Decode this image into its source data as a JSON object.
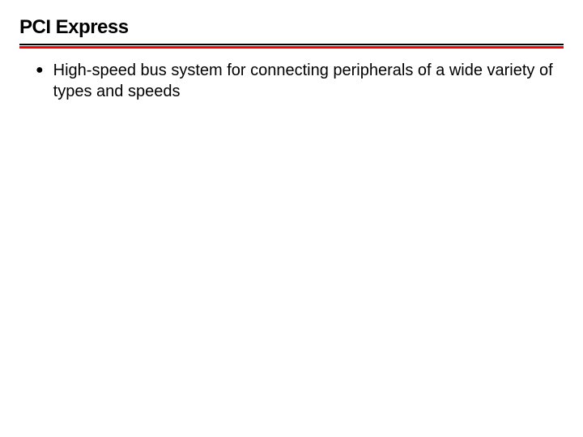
{
  "slide": {
    "title": "PCI Express",
    "bullets": [
      {
        "text": "High-speed bus system for connecting peripherals of a wide variety of types and speeds"
      }
    ]
  },
  "style": {
    "background_color": "#ffffff",
    "title_color": "#000000",
    "title_fontsize": 24,
    "title_fontweight": 900,
    "underline_black_height": 2,
    "underline_red_height": 3,
    "underline_red_color": "#ff0000",
    "underline_black_color": "#000000",
    "body_fontsize": 20,
    "body_color": "#000000",
    "bullet_symbol": "●"
  }
}
